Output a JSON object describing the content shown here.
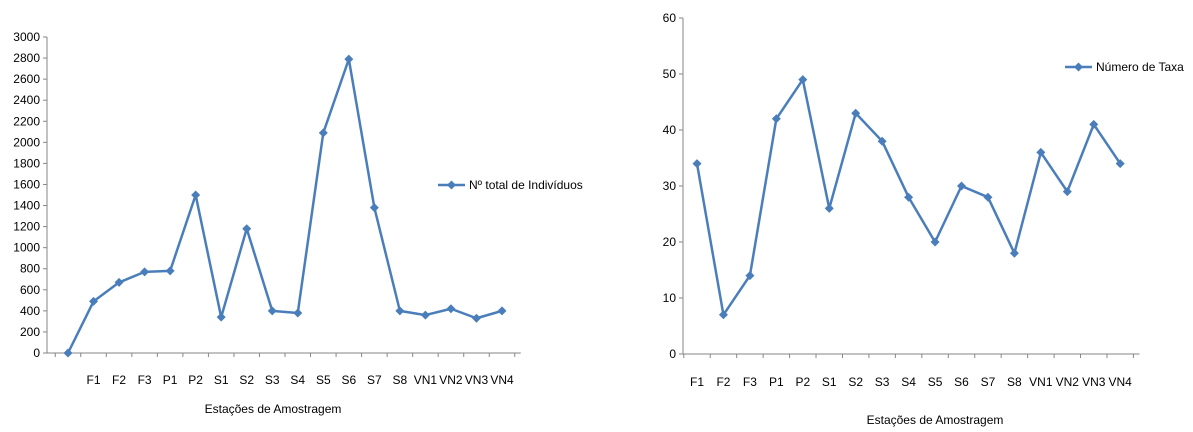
{
  "chart_data": [
    {
      "type": "line",
      "title": "",
      "xlabel": "Estações de Amostragem",
      "ylabel": "",
      "categories": [
        "",
        "F1",
        "F2",
        "F3",
        "P1",
        "P2",
        "S1",
        "S2",
        "S3",
        "S4",
        "S5",
        "S6",
        "S7",
        "S8",
        "VN1",
        "VN2",
        "VN3",
        "VN4"
      ],
      "yticks": [
        "0",
        "200",
        "400",
        "600",
        "800",
        "1000",
        "1200",
        "1400",
        "1600",
        "1800",
        "2000",
        "2200",
        "2400",
        "2600",
        "2800",
        "3000"
      ],
      "ylim": [
        0,
        3000
      ],
      "grid": false,
      "legend_position": "right",
      "series": [
        {
          "name": "Nº total de Indivíduos",
          "color": "#4a7ebb",
          "values": [
            0,
            490,
            670,
            770,
            780,
            1500,
            340,
            1180,
            400,
            380,
            2090,
            2790,
            1380,
            400,
            360,
            420,
            330,
            400
          ]
        }
      ]
    },
    {
      "type": "line",
      "title": "",
      "xlabel": "Estações de Amostragem",
      "ylabel": "",
      "categories": [
        "F1",
        "F2",
        "F3",
        "P1",
        "P2",
        "S1",
        "S2",
        "S3",
        "S4",
        "S5",
        "S6",
        "S7",
        "S8",
        "VN1",
        "VN2",
        "VN3",
        "VN4"
      ],
      "yticks": [
        "0",
        "10",
        "20",
        "30",
        "40",
        "50",
        "60"
      ],
      "ylim": [
        0,
        60
      ],
      "grid": false,
      "legend_position": "top-right",
      "series": [
        {
          "name": "Número de Taxa",
          "color": "#4a7ebb",
          "values": [
            34,
            7,
            14,
            42,
            49,
            26,
            43,
            38,
            28,
            20,
            30,
            28,
            18,
            36,
            29,
            41,
            34
          ]
        }
      ]
    }
  ]
}
